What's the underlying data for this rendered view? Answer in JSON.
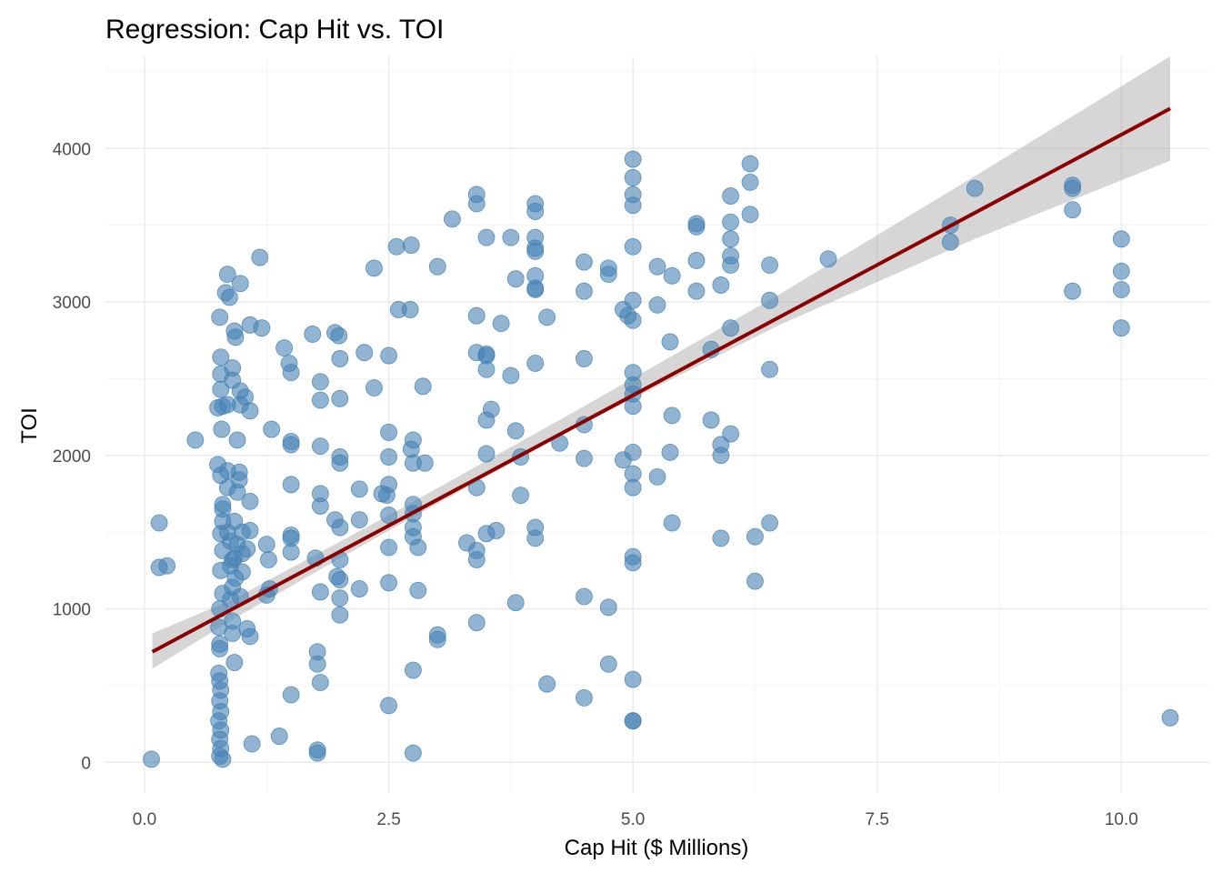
{
  "chart_data": {
    "type": "scatter",
    "title": "Regression: Cap Hit vs. TOI",
    "xlabel": "Cap Hit ($ Millions)",
    "ylabel": "TOI",
    "xlim": [
      -0.4,
      10.9
    ],
    "ylim": [
      -200,
      4600
    ],
    "x_ticks": [
      0,
      2.5,
      5,
      7.5,
      10
    ],
    "x_tick_labels": [
      "0.0",
      "2.5",
      "5.0",
      "7.5",
      "10.0"
    ],
    "y_ticks": [
      0,
      1000,
      2000,
      3000,
      4000
    ],
    "y_tick_labels": [
      "0",
      "1000",
      "2000",
      "3000",
      "4000"
    ],
    "grid": true,
    "point_color": "#4682b4",
    "fit_color": "#8b0000",
    "band_color": "#999999",
    "regression": {
      "x": [
        0.08,
        10.5
      ],
      "y": [
        720,
        4260
      ],
      "band_lower": [
        [
          0.08,
          610
        ],
        [
          0.9,
          930
        ],
        [
          2.5,
          1510
        ],
        [
          4.5,
          2210
        ],
        [
          6.5,
          2850
        ],
        [
          8.5,
          3410
        ],
        [
          10.5,
          3920
        ]
      ],
      "band_upper": [
        [
          0.08,
          840
        ],
        [
          0.9,
          1060
        ],
        [
          2.5,
          1610
        ],
        [
          4.5,
          2320
        ],
        [
          6.5,
          3050
        ],
        [
          8.5,
          3820
        ],
        [
          10.5,
          4600
        ]
      ]
    },
    "points": [
      [
        0.07,
        20
      ],
      [
        0.15,
        1560
      ],
      [
        0.15,
        1270
      ],
      [
        0.23,
        1280
      ],
      [
        0.52,
        2100
      ],
      [
        0.75,
        2310
      ],
      [
        0.75,
        1940
      ],
      [
        0.77,
        2900
      ],
      [
        0.78,
        2640
      ],
      [
        0.78,
        2530
      ],
      [
        0.78,
        2430
      ],
      [
        0.79,
        2170
      ],
      [
        0.78,
        1870
      ],
      [
        0.78,
        1490
      ],
      [
        0.78,
        1250
      ],
      [
        0.8,
        1680
      ],
      [
        0.8,
        1650
      ],
      [
        0.8,
        1570
      ],
      [
        0.8,
        1380
      ],
      [
        0.8,
        1100
      ],
      [
        0.77,
        1000
      ],
      [
        0.76,
        880
      ],
      [
        0.77,
        770
      ],
      [
        0.77,
        740
      ],
      [
        0.76,
        580
      ],
      [
        0.77,
        530
      ],
      [
        0.78,
        470
      ],
      [
        0.77,
        400
      ],
      [
        0.78,
        330
      ],
      [
        0.76,
        270
      ],
      [
        0.78,
        210
      ],
      [
        0.77,
        150
      ],
      [
        0.78,
        90
      ],
      [
        0.77,
        40
      ],
      [
        0.8,
        20
      ],
      [
        0.8,
        2320
      ],
      [
        0.83,
        3060
      ],
      [
        0.85,
        3180
      ],
      [
        0.85,
        2330
      ],
      [
        0.85,
        1900
      ],
      [
        0.85,
        1790
      ],
      [
        0.85,
        1500
      ],
      [
        0.87,
        3030
      ],
      [
        0.88,
        1440
      ],
      [
        0.88,
        1280
      ],
      [
        0.88,
        1060
      ],
      [
        0.9,
        2570
      ],
      [
        0.9,
        2490
      ],
      [
        0.9,
        1320
      ],
      [
        0.9,
        1140
      ],
      [
        0.9,
        920
      ],
      [
        0.9,
        840
      ],
      [
        0.92,
        2810
      ],
      [
        0.92,
        1330
      ],
      [
        0.92,
        1570
      ],
      [
        0.92,
        650
      ],
      [
        0.93,
        2770
      ],
      [
        0.93,
        1200
      ],
      [
        0.95,
        2100
      ],
      [
        0.95,
        1420
      ],
      [
        0.95,
        1760
      ],
      [
        0.97,
        1890
      ],
      [
        0.97,
        1840
      ],
      [
        0.98,
        3120
      ],
      [
        0.98,
        2420
      ],
      [
        0.98,
        2330
      ],
      [
        0.98,
        1080
      ],
      [
        1.0,
        1500
      ],
      [
        1.0,
        1360
      ],
      [
        1.0,
        1240
      ],
      [
        1.03,
        2380
      ],
      [
        1.05,
        1390
      ],
      [
        1.05,
        870
      ],
      [
        1.08,
        2850
      ],
      [
        1.08,
        2290
      ],
      [
        1.08,
        1700
      ],
      [
        1.08,
        1510
      ],
      [
        1.08,
        820
      ],
      [
        1.1,
        120
      ],
      [
        1.18,
        3290
      ],
      [
        1.2,
        2830
      ],
      [
        1.25,
        1420
      ],
      [
        1.27,
        1320
      ],
      [
        1.25,
        1090
      ],
      [
        1.28,
        1130
      ],
      [
        1.3,
        2170
      ],
      [
        1.38,
        170
      ],
      [
        1.43,
        2700
      ],
      [
        1.48,
        2600
      ],
      [
        1.5,
        2540
      ],
      [
        1.5,
        2070
      ],
      [
        1.5,
        2090
      ],
      [
        1.5,
        1810
      ],
      [
        1.5,
        1480
      ],
      [
        1.5,
        1460
      ],
      [
        1.5,
        1370
      ],
      [
        1.5,
        440
      ],
      [
        1.72,
        2790
      ],
      [
        1.75,
        1330
      ],
      [
        1.77,
        720
      ],
      [
        1.77,
        640
      ],
      [
        1.77,
        80
      ],
      [
        1.77,
        60
      ],
      [
        1.8,
        2480
      ],
      [
        1.8,
        2360
      ],
      [
        1.8,
        2060
      ],
      [
        1.8,
        1750
      ],
      [
        1.8,
        1670
      ],
      [
        1.8,
        1110
      ],
      [
        1.8,
        520
      ],
      [
        1.95,
        2800
      ],
      [
        1.95,
        1580
      ],
      [
        1.97,
        1210
      ],
      [
        1.99,
        2780
      ],
      [
        2.0,
        2370
      ],
      [
        2.0,
        1990
      ],
      [
        2.0,
        1950
      ],
      [
        2.0,
        2630
      ],
      [
        2.0,
        1530
      ],
      [
        2.0,
        1320
      ],
      [
        2.0,
        1190
      ],
      [
        2.0,
        1070
      ],
      [
        2.0,
        960
      ],
      [
        2.2,
        1780
      ],
      [
        2.2,
        1580
      ],
      [
        2.2,
        1130
      ],
      [
        2.25,
        2670
      ],
      [
        2.35,
        3220
      ],
      [
        2.35,
        2440
      ],
      [
        2.43,
        1750
      ],
      [
        2.48,
        1740
      ],
      [
        2.5,
        2650
      ],
      [
        2.5,
        2150
      ],
      [
        2.5,
        1990
      ],
      [
        2.5,
        1810
      ],
      [
        2.5,
        1610
      ],
      [
        2.5,
        1400
      ],
      [
        2.5,
        1170
      ],
      [
        2.5,
        370
      ],
      [
        2.58,
        3360
      ],
      [
        2.6,
        2950
      ],
      [
        2.73,
        3370
      ],
      [
        2.72,
        2950
      ],
      [
        2.73,
        2040
      ],
      [
        2.75,
        2100
      ],
      [
        2.75,
        1950
      ],
      [
        2.75,
        1680
      ],
      [
        2.75,
        1620
      ],
      [
        2.75,
        1530
      ],
      [
        2.75,
        1470
      ],
      [
        2.75,
        600
      ],
      [
        2.75,
        60
      ],
      [
        2.8,
        1400
      ],
      [
        2.8,
        1120
      ],
      [
        2.85,
        2450
      ],
      [
        2.87,
        1950
      ],
      [
        3.0,
        3230
      ],
      [
        3.0,
        830
      ],
      [
        3.0,
        800
      ],
      [
        3.15,
        3540
      ],
      [
        3.3,
        1430
      ],
      [
        3.4,
        3700
      ],
      [
        3.4,
        3640
      ],
      [
        3.4,
        2910
      ],
      [
        3.4,
        2670
      ],
      [
        3.4,
        1790
      ],
      [
        3.4,
        1380
      ],
      [
        3.4,
        1320
      ],
      [
        3.4,
        910
      ],
      [
        3.5,
        3420
      ],
      [
        3.5,
        2650
      ],
      [
        3.5,
        2660
      ],
      [
        3.5,
        2560
      ],
      [
        3.5,
        2230
      ],
      [
        3.5,
        2010
      ],
      [
        3.5,
        1490
      ],
      [
        3.55,
        2300
      ],
      [
        3.6,
        1510
      ],
      [
        3.65,
        2860
      ],
      [
        3.75,
        3420
      ],
      [
        3.75,
        2520
      ],
      [
        3.8,
        3150
      ],
      [
        3.8,
        2160
      ],
      [
        3.8,
        1040
      ],
      [
        3.85,
        1740
      ],
      [
        3.85,
        1990
      ],
      [
        4.0,
        3640
      ],
      [
        4.0,
        3590
      ],
      [
        4.0,
        3420
      ],
      [
        4.0,
        3350
      ],
      [
        4.0,
        3330
      ],
      [
        4.0,
        3170
      ],
      [
        4.0,
        3080
      ],
      [
        4.0,
        3090
      ],
      [
        4.0,
        2600
      ],
      [
        4.0,
        1530
      ],
      [
        4.0,
        1460
      ],
      [
        4.12,
        2900
      ],
      [
        4.12,
        510
      ],
      [
        4.25,
        2080
      ],
      [
        4.5,
        3260
      ],
      [
        4.5,
        3070
      ],
      [
        4.5,
        2630
      ],
      [
        4.5,
        2200
      ],
      [
        4.5,
        1980
      ],
      [
        4.5,
        1080
      ],
      [
        4.5,
        420
      ],
      [
        4.75,
        3220
      ],
      [
        4.75,
        3180
      ],
      [
        4.75,
        1010
      ],
      [
        4.75,
        640
      ],
      [
        4.9,
        2950
      ],
      [
        4.9,
        1970
      ],
      [
        4.95,
        2910
      ],
      [
        5.0,
        3930
      ],
      [
        5.0,
        3810
      ],
      [
        5.0,
        3700
      ],
      [
        5.0,
        3630
      ],
      [
        5.0,
        3360
      ],
      [
        5.0,
        3010
      ],
      [
        5.0,
        2880
      ],
      [
        5.0,
        2540
      ],
      [
        5.0,
        2460
      ],
      [
        5.0,
        2400
      ],
      [
        5.0,
        2320
      ],
      [
        5.0,
        2020
      ],
      [
        5.0,
        1880
      ],
      [
        5.0,
        1790
      ],
      [
        5.0,
        1340
      ],
      [
        5.0,
        1300
      ],
      [
        5.0,
        540
      ],
      [
        5.0,
        270
      ],
      [
        5.0,
        270
      ],
      [
        5.25,
        3230
      ],
      [
        5.25,
        2980
      ],
      [
        5.25,
        1860
      ],
      [
        5.38,
        2740
      ],
      [
        5.38,
        2020
      ],
      [
        5.4,
        3170
      ],
      [
        5.4,
        2260
      ],
      [
        5.4,
        1560
      ],
      [
        5.65,
        3510
      ],
      [
        5.65,
        3490
      ],
      [
        5.65,
        3270
      ],
      [
        5.65,
        3070
      ],
      [
        5.8,
        2690
      ],
      [
        5.8,
        2230
      ],
      [
        5.9,
        3110
      ],
      [
        5.9,
        2070
      ],
      [
        5.9,
        2000
      ],
      [
        5.9,
        1460
      ],
      [
        6.0,
        3690
      ],
      [
        6.0,
        3520
      ],
      [
        6.0,
        3410
      ],
      [
        6.0,
        3300
      ],
      [
        6.0,
        3240
      ],
      [
        6.0,
        2830
      ],
      [
        6.0,
        2140
      ],
      [
        6.2,
        3900
      ],
      [
        6.2,
        3780
      ],
      [
        6.2,
        3570
      ],
      [
        6.25,
        1470
      ],
      [
        6.25,
        1180
      ],
      [
        6.4,
        3240
      ],
      [
        6.4,
        3010
      ],
      [
        6.4,
        2560
      ],
      [
        6.4,
        1560
      ],
      [
        7.0,
        3280
      ],
      [
        8.25,
        3500
      ],
      [
        8.25,
        3390
      ],
      [
        8.5,
        3740
      ],
      [
        9.5,
        3760
      ],
      [
        9.5,
        3740
      ],
      [
        9.5,
        3600
      ],
      [
        9.5,
        3070
      ],
      [
        10.0,
        3410
      ],
      [
        10.0,
        3200
      ],
      [
        10.0,
        3080
      ],
      [
        10.0,
        2830
      ],
      [
        10.5,
        290
      ]
    ]
  }
}
